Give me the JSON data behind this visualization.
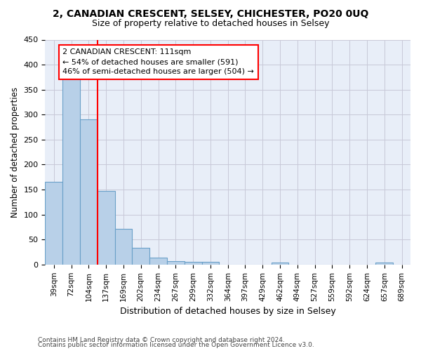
{
  "title": "2, CANADIAN CRESCENT, SELSEY, CHICHESTER, PO20 0UQ",
  "subtitle": "Size of property relative to detached houses in Selsey",
  "xlabel": "Distribution of detached houses by size in Selsey",
  "ylabel": "Number of detached properties",
  "categories": [
    "39sqm",
    "72sqm",
    "104sqm",
    "137sqm",
    "169sqm",
    "202sqm",
    "234sqm",
    "267sqm",
    "299sqm",
    "332sqm",
    "364sqm",
    "397sqm",
    "429sqm",
    "462sqm",
    "494sqm",
    "527sqm",
    "559sqm",
    "592sqm",
    "624sqm",
    "657sqm",
    "689sqm"
  ],
  "values": [
    165,
    375,
    290,
    147,
    71,
    34,
    14,
    7,
    6,
    5,
    0,
    0,
    0,
    4,
    0,
    0,
    0,
    0,
    0,
    4,
    0
  ],
  "bar_color": "#b8d0e8",
  "bar_edge_color": "#6aa0c8",
  "red_line_index": 2,
  "annotation_text": "2 CANADIAN CRESCENT: 111sqm\n← 54% of detached houses are smaller (591)\n46% of semi-detached houses are larger (504) →",
  "annotation_box_color": "white",
  "annotation_box_edge": "red",
  "ylim": [
    0,
    450
  ],
  "yticks": [
    0,
    50,
    100,
    150,
    200,
    250,
    300,
    350,
    400,
    450
  ],
  "footer_line1": "Contains HM Land Registry data © Crown copyright and database right 2024.",
  "footer_line2": "Contains public sector information licensed under the Open Government Licence v3.0.",
  "plot_bg_color": "#e8eef8",
  "grid_color": "#c8c8d8",
  "fig_bg_color": "#ffffff"
}
